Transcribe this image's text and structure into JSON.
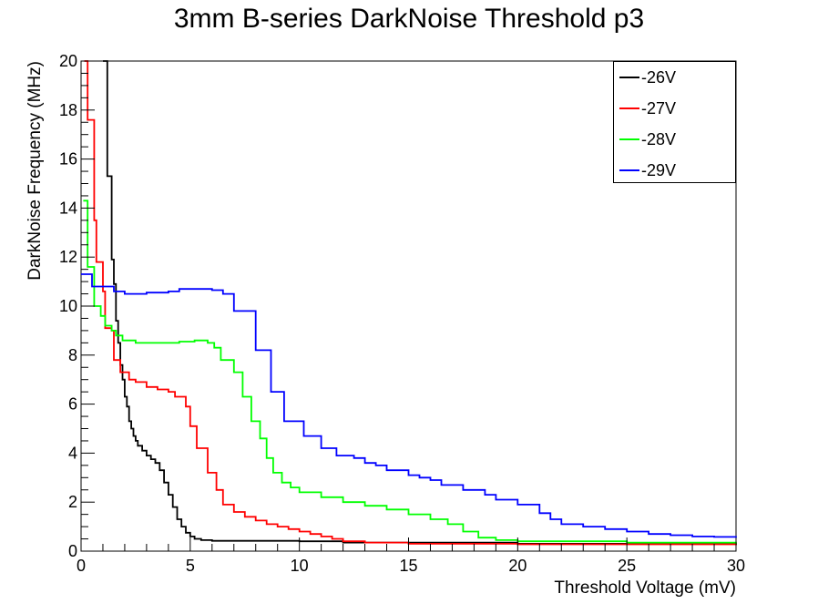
{
  "chart_data": {
    "type": "line",
    "title": "3mm B-series DarkNoise Threshold p3",
    "xlabel": "Threshold Voltage (mV)",
    "ylabel": "DarkNoise Frequency (MHz)",
    "xlim": [
      0,
      30
    ],
    "ylim": [
      0,
      20
    ],
    "x_major_ticks": [
      0,
      5,
      10,
      15,
      20,
      25,
      30
    ],
    "y_major_ticks": [
      0,
      2,
      4,
      6,
      8,
      10,
      12,
      14,
      16,
      18,
      20
    ],
    "grid": false,
    "legend_position": "top-right",
    "step_style": true,
    "series": [
      {
        "name": "-26V",
        "color": "#000000",
        "points": [
          [
            1.0,
            20
          ],
          [
            1.2,
            15.3
          ],
          [
            1.4,
            11.9
          ],
          [
            1.5,
            10.9
          ],
          [
            1.6,
            9.4
          ],
          [
            1.7,
            8.5
          ],
          [
            1.8,
            7.6
          ],
          [
            1.9,
            7.0
          ],
          [
            2.0,
            6.3
          ],
          [
            2.1,
            5.9
          ],
          [
            2.2,
            5.3
          ],
          [
            2.3,
            5.0
          ],
          [
            2.4,
            4.7
          ],
          [
            2.5,
            4.5
          ],
          [
            2.6,
            4.3
          ],
          [
            2.8,
            4.1
          ],
          [
            3.0,
            3.9
          ],
          [
            3.2,
            3.75
          ],
          [
            3.4,
            3.6
          ],
          [
            3.6,
            3.3
          ],
          [
            3.8,
            2.8
          ],
          [
            4.0,
            2.3
          ],
          [
            4.2,
            1.8
          ],
          [
            4.4,
            1.3
          ],
          [
            4.6,
            1.0
          ],
          [
            4.8,
            0.75
          ],
          [
            5.0,
            0.6
          ],
          [
            5.2,
            0.5
          ],
          [
            5.5,
            0.45
          ],
          [
            6.0,
            0.42
          ],
          [
            10.0,
            0.4
          ],
          [
            12.0,
            0.35
          ],
          [
            20.0,
            0.3
          ],
          [
            30.0,
            0.25
          ]
        ]
      },
      {
        "name": "-27V",
        "color": "#ff0000",
        "points": [
          [
            0.15,
            20
          ],
          [
            0.3,
            17.6
          ],
          [
            0.6,
            13.5
          ],
          [
            0.7,
            11.8
          ],
          [
            1.0,
            10.6
          ],
          [
            1.1,
            9.1
          ],
          [
            1.4,
            9.0
          ],
          [
            1.5,
            7.8
          ],
          [
            1.8,
            7.3
          ],
          [
            2.2,
            7.0
          ],
          [
            2.5,
            6.9
          ],
          [
            3.0,
            6.7
          ],
          [
            3.5,
            6.6
          ],
          [
            4.0,
            6.5
          ],
          [
            4.3,
            6.3
          ],
          [
            4.8,
            5.9
          ],
          [
            5.0,
            5.1
          ],
          [
            5.3,
            4.2
          ],
          [
            5.8,
            3.2
          ],
          [
            6.2,
            2.5
          ],
          [
            6.5,
            1.9
          ],
          [
            7.0,
            1.6
          ],
          [
            7.5,
            1.4
          ],
          [
            8.0,
            1.25
          ],
          [
            8.5,
            1.1
          ],
          [
            9.0,
            1.0
          ],
          [
            9.5,
            0.9
          ],
          [
            10.0,
            0.8
          ],
          [
            10.5,
            0.7
          ],
          [
            11.0,
            0.6
          ],
          [
            11.5,
            0.5
          ],
          [
            12.0,
            0.4
          ],
          [
            13.0,
            0.35
          ],
          [
            15.0,
            0.3
          ],
          [
            20.0,
            0.28
          ],
          [
            30.0,
            0.25
          ]
        ]
      },
      {
        "name": "-28V",
        "color": "#00ff00",
        "points": [
          [
            0.1,
            14.3
          ],
          [
            0.3,
            11.6
          ],
          [
            0.6,
            10.0
          ],
          [
            0.9,
            9.6
          ],
          [
            1.1,
            9.2
          ],
          [
            1.4,
            9.0
          ],
          [
            1.6,
            8.8
          ],
          [
            1.9,
            8.6
          ],
          [
            2.5,
            8.5
          ],
          [
            3.5,
            8.5
          ],
          [
            4.5,
            8.55
          ],
          [
            5.2,
            8.6
          ],
          [
            5.8,
            8.5
          ],
          [
            6.1,
            8.3
          ],
          [
            6.4,
            7.8
          ],
          [
            7.0,
            7.3
          ],
          [
            7.4,
            6.3
          ],
          [
            7.8,
            5.3
          ],
          [
            8.2,
            4.6
          ],
          [
            8.5,
            3.8
          ],
          [
            8.8,
            3.2
          ],
          [
            9.2,
            2.8
          ],
          [
            9.6,
            2.6
          ],
          [
            10.0,
            2.4
          ],
          [
            11.0,
            2.2
          ],
          [
            12.0,
            2.0
          ],
          [
            13.0,
            1.85
          ],
          [
            14.0,
            1.7
          ],
          [
            15.0,
            1.5
          ],
          [
            16.0,
            1.3
          ],
          [
            16.8,
            1.1
          ],
          [
            17.5,
            0.8
          ],
          [
            18.2,
            0.55
          ],
          [
            19.0,
            0.45
          ],
          [
            20.0,
            0.4
          ],
          [
            25.0,
            0.35
          ],
          [
            30.0,
            0.3
          ]
        ]
      },
      {
        "name": "-29V",
        "color": "#0000ff",
        "points": [
          [
            0.0,
            11.3
          ],
          [
            0.5,
            10.8
          ],
          [
            1.0,
            10.8
          ],
          [
            1.5,
            10.6
          ],
          [
            2.0,
            10.5
          ],
          [
            3.0,
            10.55
          ],
          [
            4.0,
            10.6
          ],
          [
            4.5,
            10.7
          ],
          [
            5.0,
            10.7
          ],
          [
            6.0,
            10.65
          ],
          [
            6.5,
            10.5
          ],
          [
            7.0,
            9.8
          ],
          [
            7.8,
            9.8
          ],
          [
            8.0,
            8.2
          ],
          [
            8.6,
            8.2
          ],
          [
            8.7,
            6.5
          ],
          [
            9.2,
            6.5
          ],
          [
            9.3,
            5.3
          ],
          [
            10.0,
            5.3
          ],
          [
            10.2,
            4.7
          ],
          [
            10.8,
            4.7
          ],
          [
            11.0,
            4.2
          ],
          [
            11.6,
            4.2
          ],
          [
            11.7,
            3.9
          ],
          [
            12.5,
            3.8
          ],
          [
            13.0,
            3.6
          ],
          [
            13.5,
            3.5
          ],
          [
            14.0,
            3.3
          ],
          [
            15.0,
            3.1
          ],
          [
            15.5,
            3.0
          ],
          [
            16.0,
            2.9
          ],
          [
            16.5,
            2.7
          ],
          [
            17.5,
            2.5
          ],
          [
            18.5,
            2.3
          ],
          [
            19.0,
            2.1
          ],
          [
            20.0,
            1.9
          ],
          [
            21.0,
            1.55
          ],
          [
            21.5,
            1.3
          ],
          [
            22.0,
            1.1
          ],
          [
            23.0,
            1.0
          ],
          [
            24.0,
            0.9
          ],
          [
            25.0,
            0.8
          ],
          [
            26.0,
            0.7
          ],
          [
            27.0,
            0.65
          ],
          [
            28.0,
            0.6
          ],
          [
            29.0,
            0.58
          ],
          [
            30.0,
            0.55
          ]
        ]
      }
    ]
  }
}
